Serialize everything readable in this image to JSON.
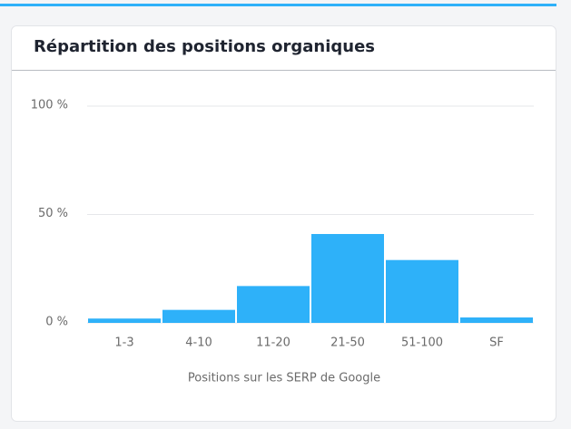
{
  "chart_data": {
    "type": "bar",
    "title": "Répartition des positions organiques",
    "x_label": "Positions sur les SERP de Google",
    "categories": [
      "1-3",
      "4-10",
      "11-20",
      "21-50",
      "51-100",
      "SF"
    ],
    "values": [
      2,
      6,
      17,
      41,
      29,
      2.5
    ],
    "color": "#2eb1f9",
    "ylim": [
      0,
      100
    ],
    "yticks": [
      {
        "value": 0,
        "label": "0 %"
      },
      {
        "value": 50,
        "label": "50 %"
      },
      {
        "value": 100,
        "label": "100 %"
      }
    ],
    "grid": true
  }
}
